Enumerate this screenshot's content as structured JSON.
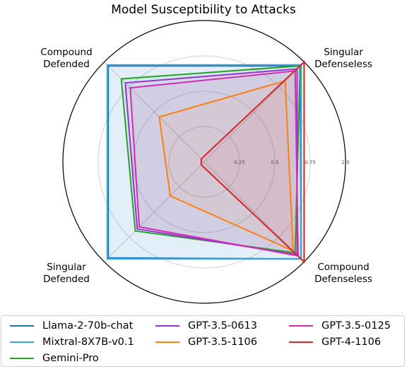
{
  "chart_data": {
    "type": "radar",
    "title": "Model Susceptibility to Attacks",
    "axes": [
      "Singular\nDefenseless",
      "Compound\nDefenseless",
      "Singular\nDefended",
      "Compound\nDefended"
    ],
    "ticks": [
      "0.25",
      "0.5",
      "0.75",
      "1.0"
    ],
    "rlim": [
      0,
      1
    ],
    "grid": true,
    "legend_position": "bottom",
    "series": [
      {
        "name": "Llama-2-70b-chat",
        "color": "#1f77b4",
        "values": [
          0.96,
          0.97,
          0.96,
          0.96
        ]
      },
      {
        "name": "Mixtral-8X7B-v0.1",
        "color": "#3aa3e8",
        "values": [
          0.97,
          0.97,
          0.97,
          0.97
        ]
      },
      {
        "name": "Gemini-Pro",
        "color": "#2ca02c",
        "values": [
          0.96,
          0.91,
          0.69,
          0.83
        ]
      },
      {
        "name": "GPT-3.5-0613",
        "color": "#9b30d9",
        "values": [
          0.93,
          0.93,
          0.67,
          0.79
        ]
      },
      {
        "name": "GPT-3.5-1106",
        "color": "#ff7f0e",
        "values": [
          0.81,
          0.89,
          0.34,
          0.45
        ]
      },
      {
        "name": "GPT-3.5-0125",
        "color": "#d62ab5",
        "values": [
          0.91,
          0.94,
          0.65,
          0.74
        ]
      },
      {
        "name": "GPT-4-1106",
        "color": "#d62728",
        "values": [
          1.0,
          1.0,
          0.03,
          0.03
        ]
      }
    ]
  }
}
